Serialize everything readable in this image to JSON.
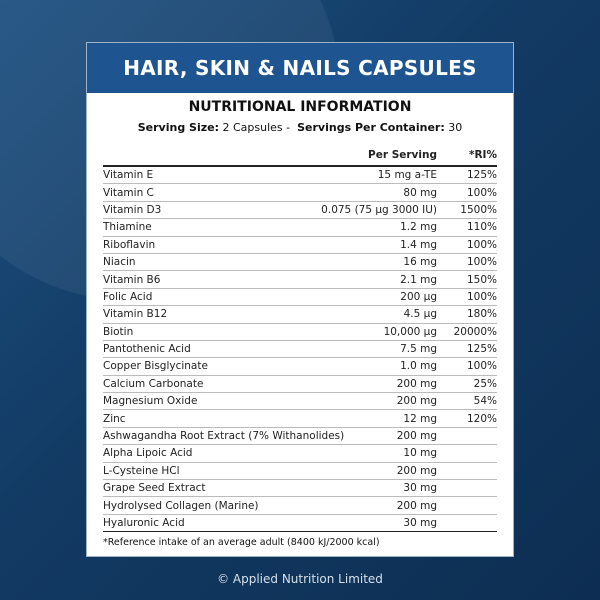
{
  "title": "HAIR, SKIN & NAILS CAPSULES",
  "subtitle": "NUTRITIONAL INFORMATION",
  "serving": {
    "size_label": "Serving Size:",
    "size_value": "2 Capsules -",
    "per_container_label": "Servings Per Container:",
    "per_container_value": "30"
  },
  "columns": {
    "per_serving": "Per Serving",
    "ri": "*RI%"
  },
  "rows": [
    {
      "name": "Vitamin E",
      "amount": "15 mg a-TE",
      "ri": "125%"
    },
    {
      "name": "Vitamin C",
      "amount": "80 mg",
      "ri": "100%"
    },
    {
      "name": "Vitamin D3",
      "amount": "0.075 (75 µg 3000 IU)",
      "ri": "1500%"
    },
    {
      "name": "Thiamine",
      "amount": "1.2 mg",
      "ri": "110%"
    },
    {
      "name": "Riboflavin",
      "amount": "1.4 mg",
      "ri": "100%"
    },
    {
      "name": "Niacin",
      "amount": "16 mg",
      "ri": "100%"
    },
    {
      "name": "Vitamin B6",
      "amount": "2.1 mg",
      "ri": "150%"
    },
    {
      "name": "Folic Acid",
      "amount": "200 µg",
      "ri": "100%"
    },
    {
      "name": "Vitamin B12",
      "amount": "4.5 µg",
      "ri": "180%"
    },
    {
      "name": "Biotin",
      "amount": "10,000 µg",
      "ri": "20000%"
    },
    {
      "name": "Pantothenic Acid",
      "amount": "7.5 mg",
      "ri": "125%"
    },
    {
      "name": "Copper Bisglycinate",
      "amount": "1.0 mg",
      "ri": "100%"
    },
    {
      "name": "Calcium Carbonate",
      "amount": "200 mg",
      "ri": "25%"
    },
    {
      "name": "Magnesium Oxide",
      "amount": "200 mg",
      "ri": "54%"
    },
    {
      "name": "Zinc",
      "amount": "12 mg",
      "ri": "120%"
    },
    {
      "name": "Ashwagandha Root Extract (7% Withanolides)",
      "amount": "200 mg",
      "ri": ""
    },
    {
      "name": "Alpha Lipoic Acid",
      "amount": "10 mg",
      "ri": ""
    },
    {
      "name": "L-Cysteine HCl",
      "amount": "200 mg",
      "ri": ""
    },
    {
      "name": "Grape Seed Extract",
      "amount": "30 mg",
      "ri": ""
    },
    {
      "name": "Hydrolysed Collagen (Marine)",
      "amount": "200 mg",
      "ri": ""
    },
    {
      "name": "Hyaluronic Acid",
      "amount": "30 mg",
      "ri": ""
    }
  ],
  "footnote": "*Reference intake of an average adult (8400 kJ/2000 kcal)",
  "copyright": "© Applied Nutrition Limited",
  "colors": {
    "header": "#1e5591",
    "background": "#123a63"
  }
}
